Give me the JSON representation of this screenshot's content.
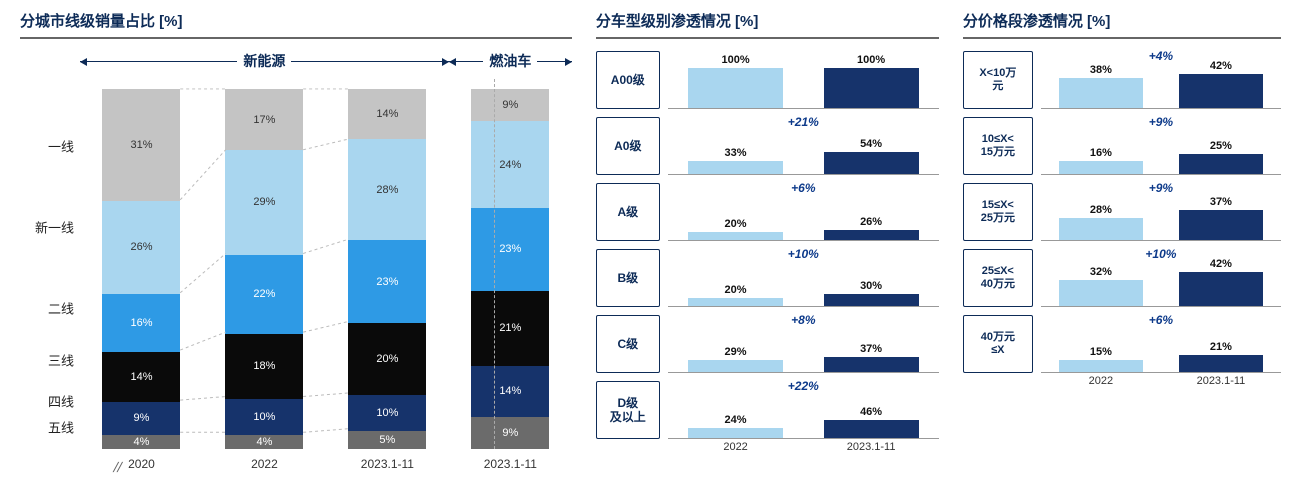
{
  "colors": {
    "tier1": "#c4c4c4",
    "tier_new1": "#a9d6ef",
    "tier2": "#2e9ae5",
    "tier3": "#0a0a0a",
    "tier4": "#16336b",
    "tier5": "#6b6b6b",
    "bar_2022": "#a9d6ef",
    "bar_2023": "#16336b",
    "title_color": "#0d2b57",
    "delta_color": "#0d3a8a",
    "rule_color": "#666666",
    "row_border": "#0d2b57"
  },
  "panel1": {
    "title": "分城市线级销量占比 [%]",
    "group_a": "新能源",
    "group_b": "燃油车",
    "categories": [
      "一线",
      "新一线",
      "二线",
      "三线",
      "四线",
      "五线"
    ],
    "x_labels": [
      "2020",
      "2022",
      "2023.1-11",
      "2023.1-11"
    ],
    "bars": [
      {
        "id": "2020",
        "group": "a",
        "segments": [
          {
            "cat": "五线",
            "v": 4,
            "color": "tier5",
            "tc": "light"
          },
          {
            "cat": "四线",
            "v": 9,
            "color": "tier4",
            "tc": "light"
          },
          {
            "cat": "三线",
            "v": 14,
            "color": "tier3",
            "tc": "light"
          },
          {
            "cat": "二线",
            "v": 16,
            "color": "tier2",
            "tc": "light"
          },
          {
            "cat": "新一线",
            "v": 26,
            "color": "tier_new1",
            "tc": "dark"
          },
          {
            "cat": "一线",
            "v": 31,
            "color": "tier1",
            "tc": "dark"
          }
        ]
      },
      {
        "id": "2022",
        "group": "a",
        "segments": [
          {
            "cat": "五线",
            "v": 4,
            "color": "tier5",
            "tc": "light"
          },
          {
            "cat": "四线",
            "v": 10,
            "color": "tier4",
            "tc": "light"
          },
          {
            "cat": "三线",
            "v": 18,
            "color": "tier3",
            "tc": "light"
          },
          {
            "cat": "二线",
            "v": 22,
            "color": "tier2",
            "tc": "light"
          },
          {
            "cat": "新一线",
            "v": 29,
            "color": "tier_new1",
            "tc": "dark"
          },
          {
            "cat": "一线",
            "v": 17,
            "color": "tier1",
            "tc": "dark"
          }
        ]
      },
      {
        "id": "2023a",
        "group": "a",
        "segments": [
          {
            "cat": "五线",
            "v": 5,
            "color": "tier5",
            "tc": "light"
          },
          {
            "cat": "四线",
            "v": 10,
            "color": "tier4",
            "tc": "light"
          },
          {
            "cat": "三线",
            "v": 20,
            "color": "tier3",
            "tc": "light"
          },
          {
            "cat": "二线",
            "v": 23,
            "color": "tier2",
            "tc": "light"
          },
          {
            "cat": "新一线",
            "v": 28,
            "color": "tier_new1",
            "tc": "dark"
          },
          {
            "cat": "一线",
            "v": 14,
            "color": "tier1",
            "tc": "dark"
          }
        ]
      },
      {
        "id": "2023b",
        "group": "b",
        "segments": [
          {
            "cat": "五线",
            "v": 9,
            "color": "tier5",
            "tc": "light"
          },
          {
            "cat": "四线",
            "v": 14,
            "color": "tier4",
            "tc": "light"
          },
          {
            "cat": "三线",
            "v": 21,
            "color": "tier3",
            "tc": "light"
          },
          {
            "cat": "二线",
            "v": 23,
            "color": "tier2",
            "tc": "light"
          },
          {
            "cat": "新一线",
            "v": 24,
            "color": "tier_new1",
            "tc": "dark"
          },
          {
            "cat": "一线",
            "v": 9,
            "color": "tier1",
            "tc": "dark"
          }
        ]
      }
    ],
    "category_y_pct_from_top": {
      "一线": 18,
      "新一线": 40,
      "二线": 62,
      "三线": 76,
      "四线": 87,
      "五线": 94
    }
  },
  "panel2": {
    "title": "分车型级别渗透情况 [%]",
    "x_labels": [
      "2022",
      "2023.1-11"
    ],
    "bar_max_rel": 100,
    "rows": [
      {
        "label": "A00级",
        "v2022": 100,
        "v2023": 100,
        "delta": ""
      },
      {
        "label": "A0级",
        "v2022": 33,
        "v2023": 54,
        "delta": "+21%"
      },
      {
        "label": "A级",
        "v2022": 20,
        "v2023": 26,
        "delta": "+6%"
      },
      {
        "label": "B级",
        "v2022": 20,
        "v2023": 30,
        "delta": "+10%"
      },
      {
        "label": "C级",
        "v2022": 29,
        "v2023": 37,
        "delta": "+8%"
      },
      {
        "label": "D级\n及以上",
        "v2022": 24,
        "v2023": 46,
        "delta": "+22%"
      }
    ]
  },
  "panel3": {
    "title": "分价格段渗透情况 [%]",
    "x_labels": [
      "2022",
      "2023.1-11"
    ],
    "bar_max_rel": 50,
    "rows": [
      {
        "label": "X<10万\n元",
        "v2022": 38,
        "v2023": 42,
        "delta": "+4%"
      },
      {
        "label": "10≤X<\n15万元",
        "v2022": 16,
        "v2023": 25,
        "delta": "+9%"
      },
      {
        "label": "15≤X<\n25万元",
        "v2022": 28,
        "v2023": 37,
        "delta": "+9%"
      },
      {
        "label": "25≤X<\n40万元",
        "v2022": 32,
        "v2023": 42,
        "delta": "+10%"
      },
      {
        "label": "40万元\n≤X",
        "v2022": 15,
        "v2023": 21,
        "delta": "+6%"
      }
    ]
  }
}
